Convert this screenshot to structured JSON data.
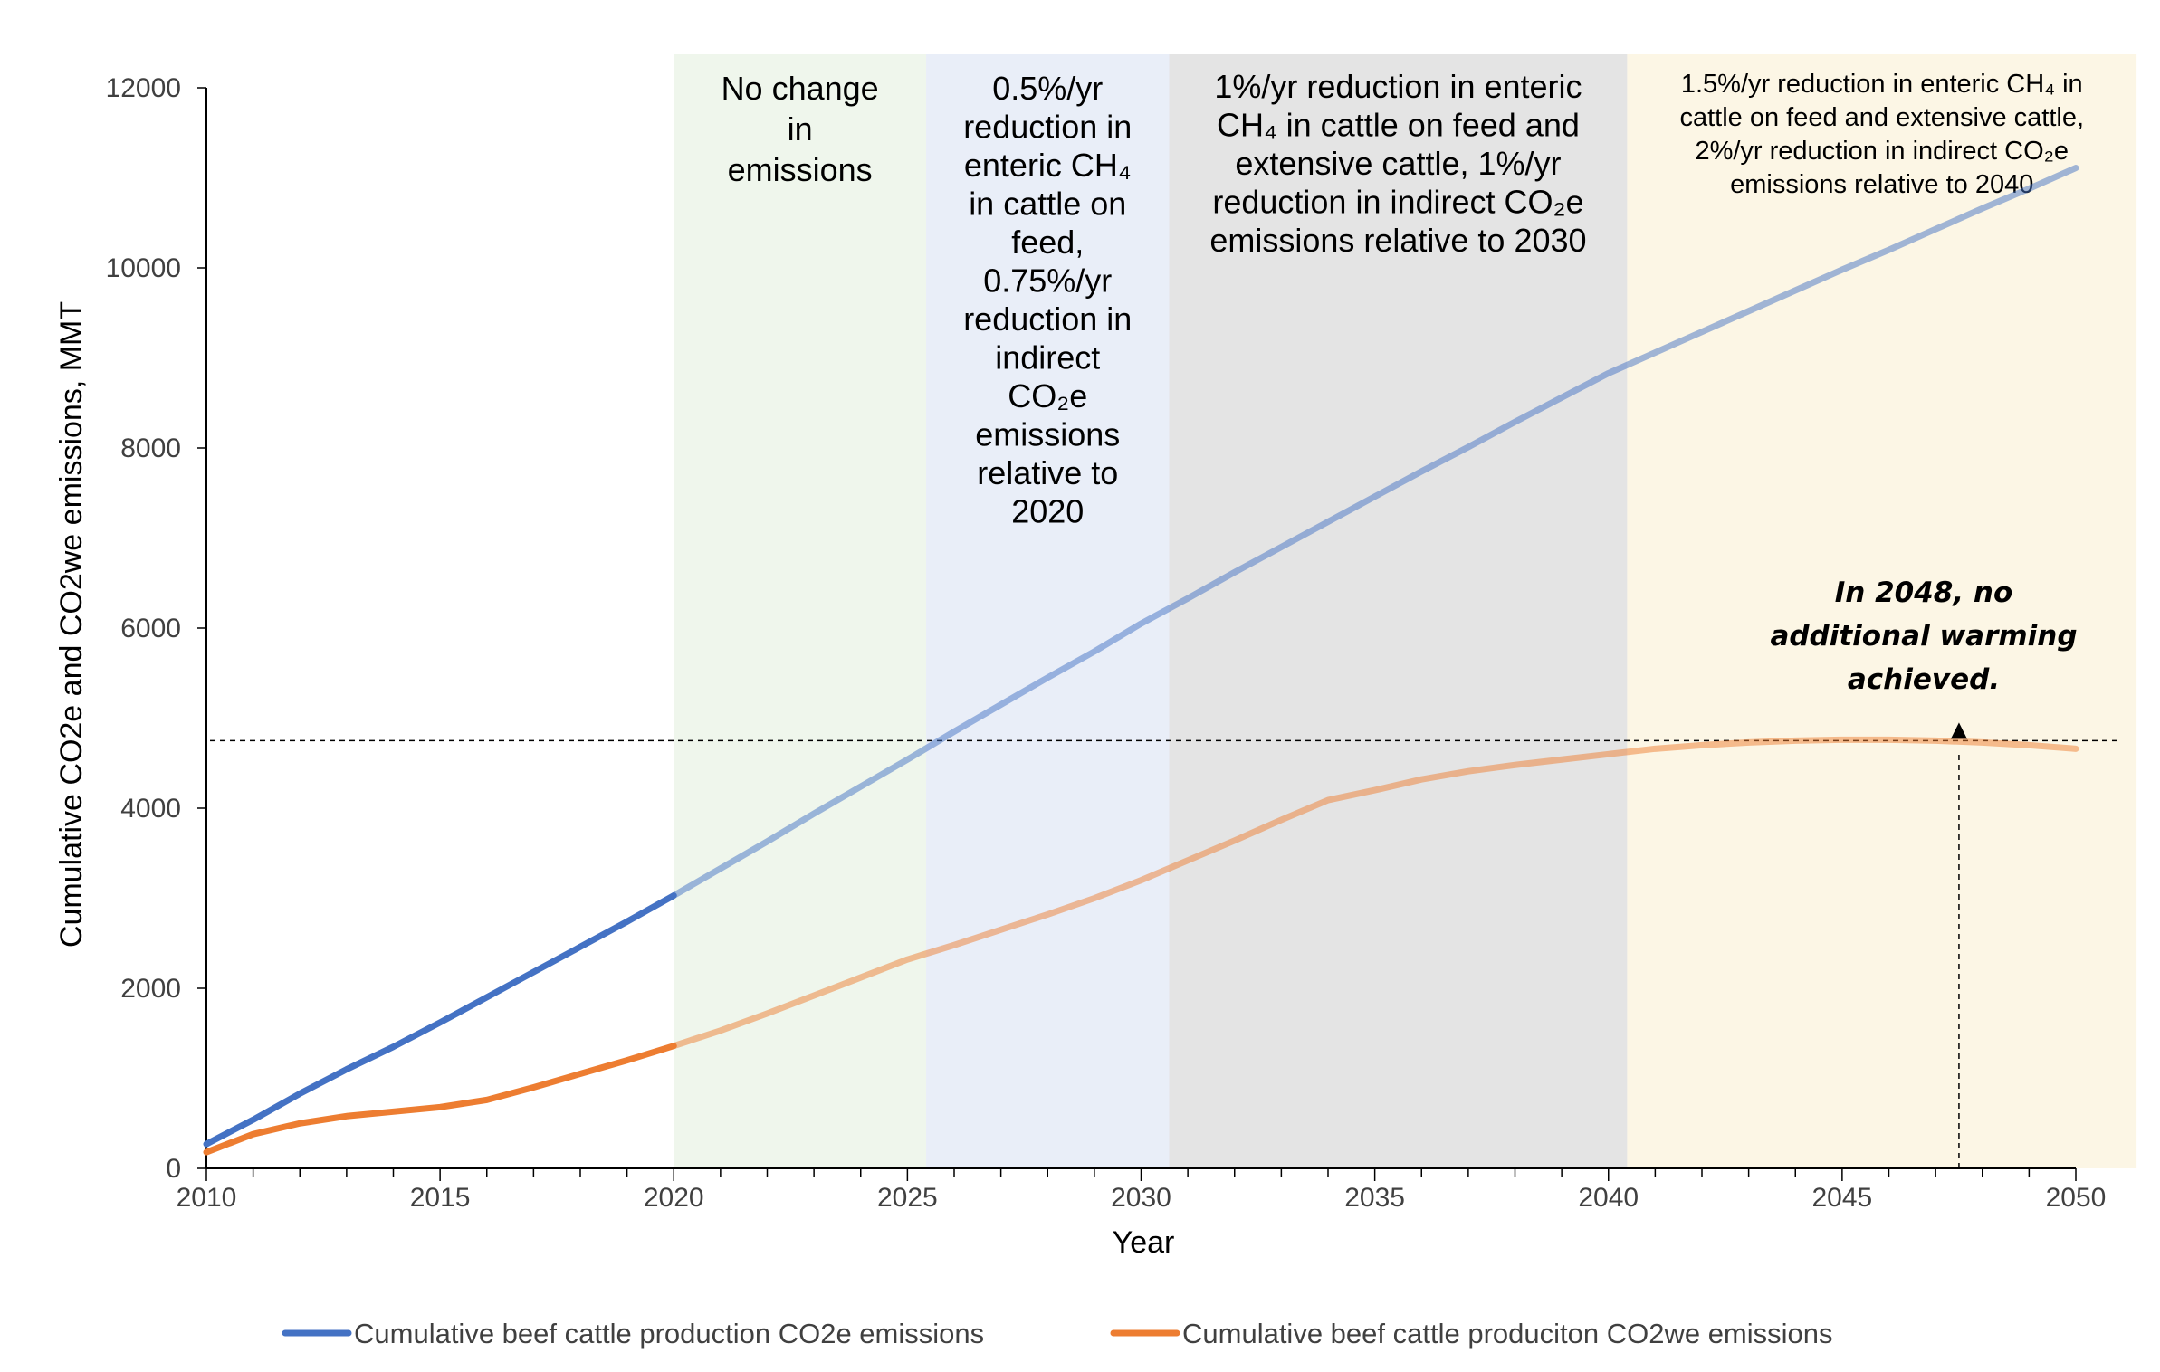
{
  "chart_data": {
    "type": "line",
    "title": "",
    "xlabel": "Year",
    "ylabel": "Cumulative CO2e and CO2we emissions, MMT",
    "xlim": [
      2010,
      2050
    ],
    "ylim": [
      0,
      12000
    ],
    "x_ticks": [
      "2010",
      "2015",
      "2020",
      "2025",
      "2030",
      "2035",
      "2040",
      "2045",
      "2050"
    ],
    "y_ticks": [
      "0",
      "2000",
      "4000",
      "6000",
      "8000",
      "10000",
      "12000"
    ],
    "grid": false,
    "legend_position": "bottom",
    "x": [
      2010,
      2011,
      2012,
      2013,
      2014,
      2015,
      2016,
      2017,
      2018,
      2019,
      2020,
      2021,
      2022,
      2023,
      2024,
      2025,
      2026,
      2027,
      2028,
      2029,
      2030,
      2031,
      2032,
      2033,
      2034,
      2035,
      2036,
      2037,
      2038,
      2039,
      2040,
      2041,
      2042,
      2043,
      2044,
      2045,
      2046,
      2047,
      2048,
      2049,
      2050
    ],
    "series": [
      {
        "name": "Cumulative beef cattle production CO2e emissions",
        "color": "#4472C4",
        "values": [
          270,
          540,
          830,
          1100,
          1350,
          1620,
          1900,
          2180,
          2460,
          2740,
          3030,
          3330,
          3630,
          3940,
          4240,
          4540,
          4850,
          5150,
          5450,
          5740,
          6050,
          6330,
          6620,
          6900,
          7180,
          7460,
          7740,
          8010,
          8290,
          8560,
          8830,
          9060,
          9290,
          9520,
          9750,
          9980,
          10200,
          10430,
          10660,
          10880,
          11110
        ]
      },
      {
        "name": "Cumulative beef cattle produciton CO2we emissions",
        "color": "#ED7D31",
        "values": [
          180,
          380,
          500,
          580,
          630,
          680,
          760,
          900,
          1050,
          1200,
          1360,
          1530,
          1720,
          1920,
          2120,
          2320,
          2480,
          2650,
          2820,
          3000,
          3200,
          3420,
          3640,
          3870,
          4090,
          4200,
          4320,
          4410,
          4480,
          4540,
          4600,
          4660,
          4700,
          4730,
          4750,
          4760,
          4760,
          4750,
          4730,
          4700,
          4660
        ]
      }
    ],
    "regions": [
      {
        "x_start": 2020,
        "x_end": 2025.4,
        "color": "#EFF6EC",
        "lines": [
          "No change",
          "in",
          "emissions"
        ]
      },
      {
        "x_start": 2025.4,
        "x_end": 2030.6,
        "color": "#E9EEF8",
        "lines": [
          "0.5%/yr",
          "reduction in",
          "enteric CH₄",
          "in cattle on",
          "feed,",
          "0.75%/yr",
          "reduction in",
          "indirect",
          "CO₂e",
          "emissions",
          "relative to",
          "2020"
        ]
      },
      {
        "x_start": 2030.6,
        "x_end": 2040.4,
        "color": "#E4E4E4",
        "lines": [
          "1%/yr reduction in enteric",
          "CH₄ in cattle on feed and",
          "extensive cattle, 1%/yr",
          "reduction in indirect CO₂e",
          "emissions relative to 2030"
        ]
      },
      {
        "x_start": 2040.4,
        "x_end": 2051.3,
        "color": "#FCF6E5",
        "lines": [
          "1.5%/yr reduction in enteric CH₄ in",
          "cattle on feed and extensive cattle,",
          "2%/yr reduction in indirect CO₂e",
          "emissions relative to 2040"
        ]
      }
    ],
    "reference_line_y": 4750,
    "annotation": {
      "lines": [
        "In 2048, no",
        "additional warming",
        "achieved."
      ],
      "x": 2047.5
    }
  }
}
